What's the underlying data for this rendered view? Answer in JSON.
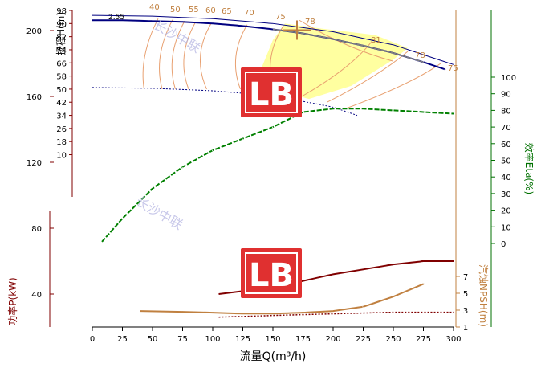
{
  "colors": {
    "head_axis": "#800000",
    "power_axis": "#800000",
    "npsh_axis": "#c08040",
    "eff_axis": "#007000",
    "head_curve": "#000080",
    "eff_curve": "#008000",
    "power_curve": "#800000",
    "npsh_curve": "#c08040",
    "iso_eff": "#e8a070",
    "operating_region": "#ffff80",
    "watermark_text": "#b0b0e0",
    "logo_red": "#e03030"
  },
  "axis_labels": {
    "x": "流量Q(m³/h)",
    "head": "扬程H(m)",
    "power": "功率P(kW)",
    "npsh": "汽蚀NPSH(m)",
    "efficiency": "效率Eta(%)"
  },
  "watermark": "长沙中联",
  "logo_letters": "LB",
  "annotations": {
    "impeller_label": "2.55",
    "eff_labels": [
      "40",
      "50",
      "55",
      "60",
      "65",
      "70",
      "75",
      "78",
      "81",
      "78",
      "75"
    ]
  },
  "chart_data": {
    "type": "line",
    "x_axis": {
      "label": "流量Q(m³/h)",
      "ticks": [
        0,
        25,
        50,
        75,
        100,
        125,
        150,
        175,
        200,
        225,
        250,
        275,
        300
      ],
      "range": [
        0,
        300
      ]
    },
    "head_axis": {
      "label": "扬程H(m)",
      "ticks": [
        10,
        18,
        26,
        34,
        42,
        50,
        58,
        66,
        74,
        82,
        90,
        98
      ],
      "range": [
        2,
        98
      ]
    },
    "efficiency_axis": {
      "label": "效率Eta(%)",
      "ticks": [
        0,
        10,
        20,
        30,
        40,
        50,
        60,
        70,
        80,
        90,
        100
      ]
    },
    "power_axis": {
      "label": "功率P(kW)",
      "ticks": [
        40,
        80,
        120,
        160,
        200
      ]
    },
    "npsh_axis": {
      "label": "汽蚀NPSH(m)",
      "ticks": [
        1,
        3,
        5,
        7
      ]
    },
    "series": [
      {
        "axis": "head",
        "x": [
          0,
          25,
          50,
          75,
          100,
          125,
          150,
          175,
          200,
          225,
          250,
          275,
          293
        ],
        "y": [
          92,
          92,
          91.5,
          91,
          90,
          88.5,
          86.5,
          84,
          80.5,
          76.5,
          72,
          66.5,
          62
        ]
      },
      {
        "axis": "head",
        "x": [
          0,
          50,
          100,
          150,
          200,
          250,
          300
        ],
        "y": [
          95,
          94.5,
          93,
          90,
          85,
          77,
          65
        ]
      },
      {
        "axis": "head",
        "x": [
          0,
          50,
          100,
          150,
          200,
          220
        ],
        "y": [
          51,
          50.5,
          49,
          46,
          39,
          34
        ]
      },
      {
        "axis": "efficiency",
        "x": [
          8,
          25,
          50,
          75,
          100,
          125,
          150,
          175,
          200,
          225,
          250,
          275,
          300
        ],
        "y": [
          1,
          15,
          33,
          46,
          56,
          63,
          70,
          79,
          81,
          81,
          80,
          79,
          78
        ]
      },
      {
        "axis": "power",
        "x": [
          105,
          150,
          200,
          250,
          275,
          300
        ],
        "y": [
          40,
          44,
          52,
          58,
          60,
          60
        ]
      },
      {
        "axis": "power",
        "x": [
          105,
          150,
          200,
          250,
          300
        ],
        "y": [
          26,
          27,
          28,
          29,
          29
        ]
      },
      {
        "axis": "npsh",
        "x": [
          40,
          75,
          100,
          125,
          150,
          175,
          200,
          225,
          250,
          275
        ],
        "y": [
          2.9,
          2.8,
          2.7,
          2.6,
          2.6,
          2.7,
          2.9,
          3.4,
          4.6,
          6.1
        ]
      }
    ],
    "operating_point": {
      "x": 170,
      "y": 86
    }
  }
}
